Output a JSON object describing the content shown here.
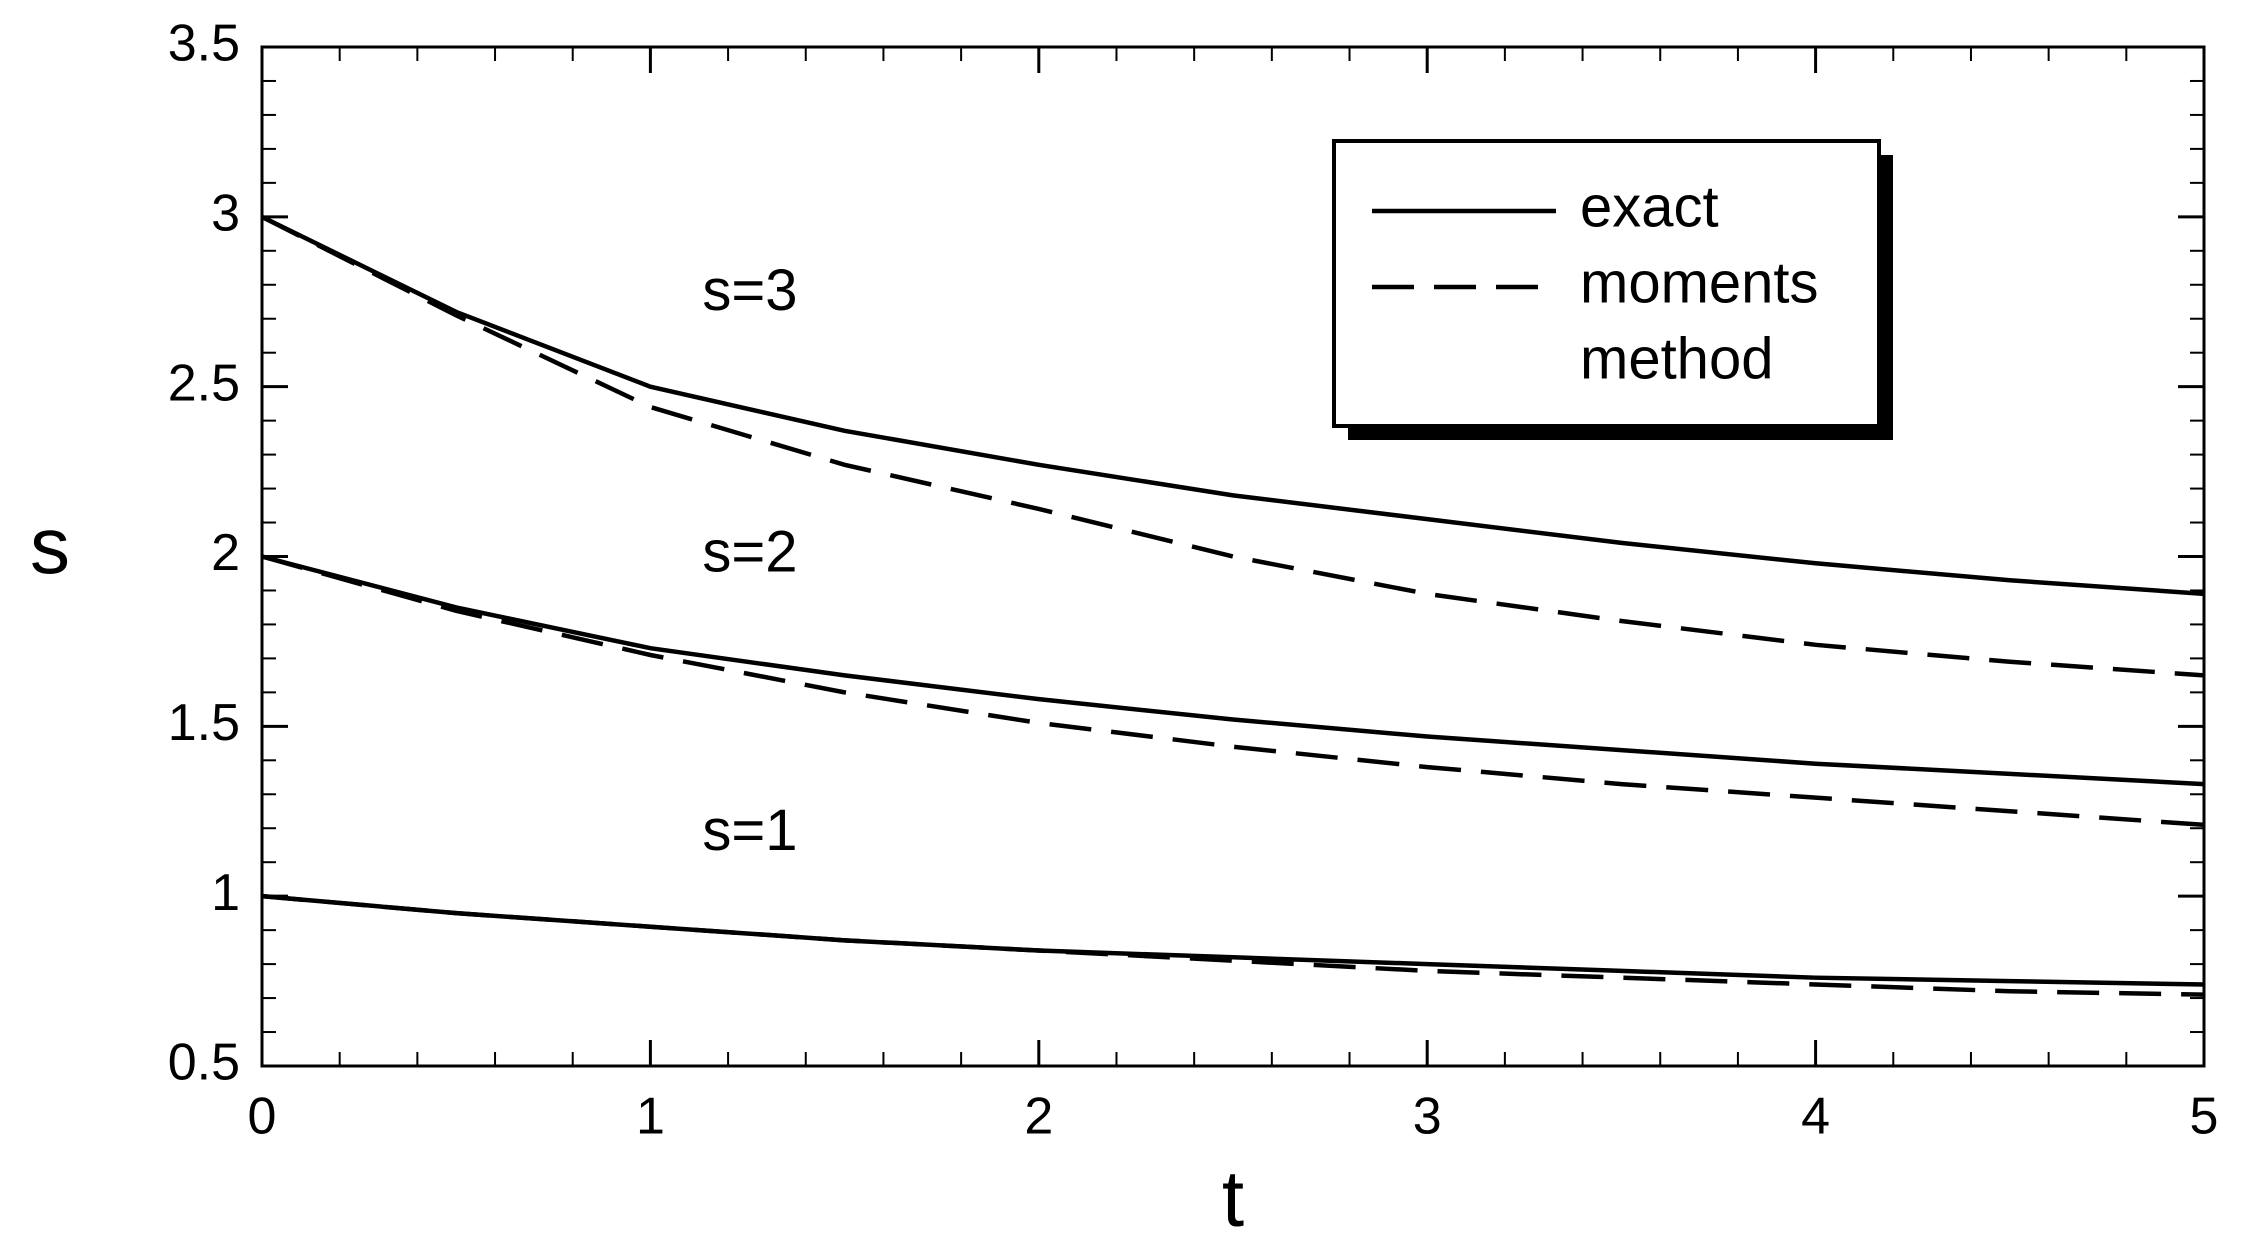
{
  "chart_data": {
    "type": "line",
    "x_label": "t",
    "y_label": "s",
    "x": [
      0,
      0.5,
      1,
      1.5,
      2,
      2.5,
      3,
      3.5,
      4,
      4.5,
      5
    ],
    "series": [
      {
        "label": "s=3",
        "dash": false,
        "color": "#000000",
        "values": [
          3,
          2.72,
          2.5,
          2.37,
          2.27,
          2.18,
          2.11,
          2.04,
          1.98,
          1.93,
          1.89
        ]
      },
      {
        "dash": true,
        "color": "#000000",
        "values": [
          3,
          2.71,
          2.44,
          2.27,
          2.14,
          2.0,
          1.89,
          1.81,
          1.74,
          1.69,
          1.65
        ]
      },
      {
        "label": "s=2",
        "dash": false,
        "color": "#000000",
        "values": [
          2,
          1.85,
          1.73,
          1.65,
          1.58,
          1.52,
          1.47,
          1.43,
          1.39,
          1.36,
          1.33
        ]
      },
      {
        "dash": true,
        "color": "#000000",
        "values": [
          2,
          1.84,
          1.71,
          1.6,
          1.51,
          1.44,
          1.38,
          1.33,
          1.29,
          1.25,
          1.21
        ]
      },
      {
        "label": "s=1",
        "dash": false,
        "color": "#000000",
        "values": [
          1,
          0.95,
          0.91,
          0.87,
          0.84,
          0.82,
          0.8,
          0.78,
          0.76,
          0.75,
          0.74
        ]
      },
      {
        "dash": true,
        "color": "#000000",
        "values": [
          1,
          0.95,
          0.91,
          0.87,
          0.84,
          0.81,
          0.78,
          0.76,
          0.74,
          0.72,
          0.71
        ]
      }
    ],
    "legend": [
      {
        "lines": [
          "exact"
        ],
        "dash": false
      },
      {
        "lines": [
          "moments",
          "method"
        ],
        "dash": true
      }
    ],
    "xlim": [
      0,
      5
    ],
    "xticks": [
      0,
      1,
      2,
      3,
      4,
      5
    ],
    "ylim": [
      0.5,
      3.5
    ],
    "yticks": [
      0.5,
      1,
      1.5,
      2,
      2.5,
      3,
      3.5
    ],
    "x_minor_step": 0.2,
    "y_minor_step": 0.1
  }
}
